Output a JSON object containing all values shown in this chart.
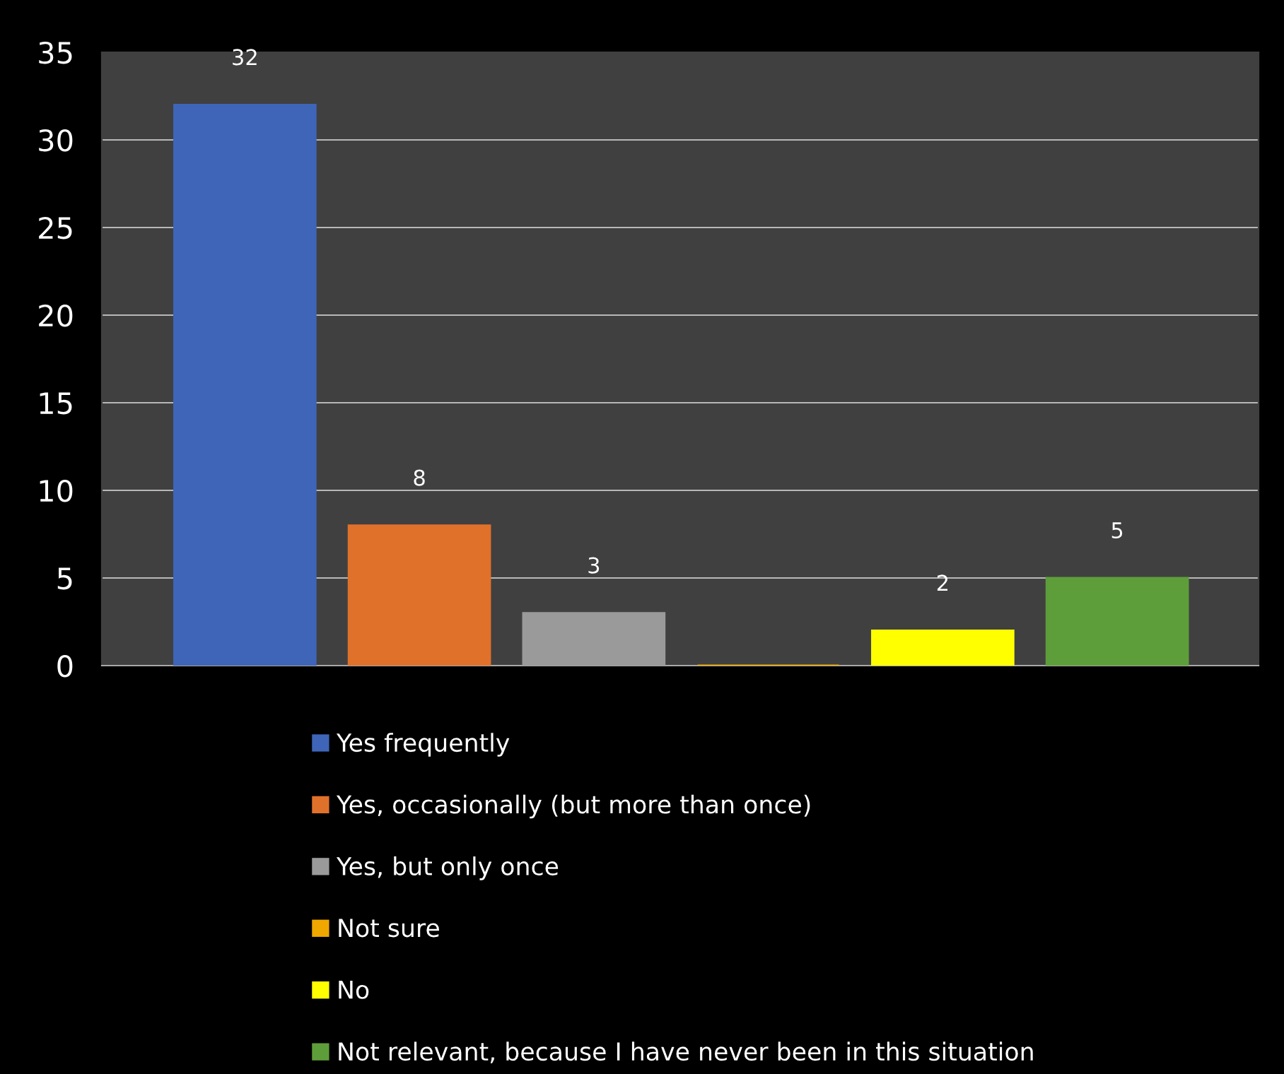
{
  "chart_data": {
    "type": "bar",
    "categories": [
      null
    ],
    "series": [
      {
        "name": "Yes frequently",
        "color": "#3e65b8",
        "values": [
          32
        ],
        "value_labels": [
          "32"
        ]
      },
      {
        "name": "Yes, occasionally (but more than once)",
        "color": "#e0712a",
        "values": [
          8
        ],
        "value_labels": [
          "8"
        ]
      },
      {
        "name": "Yes, but only once",
        "color": "#9a9a9a",
        "values": [
          3
        ],
        "value_labels": [
          "3"
        ]
      },
      {
        "name": "Not sure",
        "color": "#f0a800",
        "values": [
          0
        ],
        "value_labels": [
          null
        ]
      },
      {
        "name": "No",
        "color": "#ffff00",
        "values": [
          2
        ],
        "value_labels": [
          "2"
        ]
      },
      {
        "name": "Not relevant, because I have never been in this situation",
        "color": "#5e9e3a",
        "values": [
          5
        ],
        "value_labels": [
          "5"
        ]
      }
    ],
    "ylim": [
      0,
      35
    ],
    "yticks": [
      0,
      5,
      10,
      15,
      20,
      25,
      30,
      35
    ],
    "grid": "y",
    "legend": "bottom"
  }
}
